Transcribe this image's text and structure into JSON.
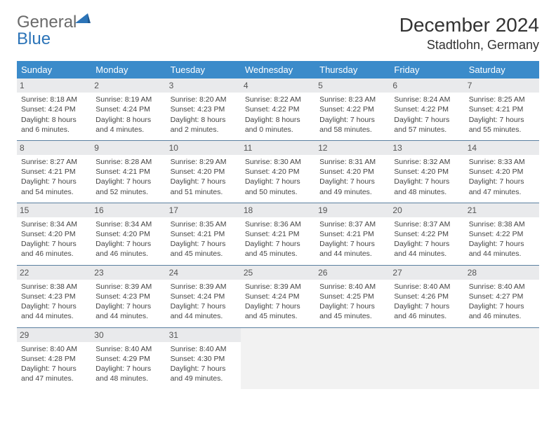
{
  "brand": {
    "part1": "General",
    "part2": "Blue"
  },
  "title": "December 2024",
  "location": "Stadtlohn, Germany",
  "colors": {
    "header_bg": "#3b8bca",
    "header_text": "#ffffff",
    "daynum_bg": "#e9eaec",
    "row_divider": "#5a7fa0",
    "brand_gray": "#6a6a6a",
    "brand_blue": "#2c74b8",
    "empty_bg": "#f2f2f2"
  },
  "columns": [
    "Sunday",
    "Monday",
    "Tuesday",
    "Wednesday",
    "Thursday",
    "Friday",
    "Saturday"
  ],
  "weeks": [
    [
      {
        "n": "1",
        "sr": "Sunrise: 8:18 AM",
        "ss": "Sunset: 4:24 PM",
        "dl": "Daylight: 8 hours and 6 minutes."
      },
      {
        "n": "2",
        "sr": "Sunrise: 8:19 AM",
        "ss": "Sunset: 4:24 PM",
        "dl": "Daylight: 8 hours and 4 minutes."
      },
      {
        "n": "3",
        "sr": "Sunrise: 8:20 AM",
        "ss": "Sunset: 4:23 PM",
        "dl": "Daylight: 8 hours and 2 minutes."
      },
      {
        "n": "4",
        "sr": "Sunrise: 8:22 AM",
        "ss": "Sunset: 4:22 PM",
        "dl": "Daylight: 8 hours and 0 minutes."
      },
      {
        "n": "5",
        "sr": "Sunrise: 8:23 AM",
        "ss": "Sunset: 4:22 PM",
        "dl": "Daylight: 7 hours and 58 minutes."
      },
      {
        "n": "6",
        "sr": "Sunrise: 8:24 AM",
        "ss": "Sunset: 4:22 PM",
        "dl": "Daylight: 7 hours and 57 minutes."
      },
      {
        "n": "7",
        "sr": "Sunrise: 8:25 AM",
        "ss": "Sunset: 4:21 PM",
        "dl": "Daylight: 7 hours and 55 minutes."
      }
    ],
    [
      {
        "n": "8",
        "sr": "Sunrise: 8:27 AM",
        "ss": "Sunset: 4:21 PM",
        "dl": "Daylight: 7 hours and 54 minutes."
      },
      {
        "n": "9",
        "sr": "Sunrise: 8:28 AM",
        "ss": "Sunset: 4:21 PM",
        "dl": "Daylight: 7 hours and 52 minutes."
      },
      {
        "n": "10",
        "sr": "Sunrise: 8:29 AM",
        "ss": "Sunset: 4:20 PM",
        "dl": "Daylight: 7 hours and 51 minutes."
      },
      {
        "n": "11",
        "sr": "Sunrise: 8:30 AM",
        "ss": "Sunset: 4:20 PM",
        "dl": "Daylight: 7 hours and 50 minutes."
      },
      {
        "n": "12",
        "sr": "Sunrise: 8:31 AM",
        "ss": "Sunset: 4:20 PM",
        "dl": "Daylight: 7 hours and 49 minutes."
      },
      {
        "n": "13",
        "sr": "Sunrise: 8:32 AM",
        "ss": "Sunset: 4:20 PM",
        "dl": "Daylight: 7 hours and 48 minutes."
      },
      {
        "n": "14",
        "sr": "Sunrise: 8:33 AM",
        "ss": "Sunset: 4:20 PM",
        "dl": "Daylight: 7 hours and 47 minutes."
      }
    ],
    [
      {
        "n": "15",
        "sr": "Sunrise: 8:34 AM",
        "ss": "Sunset: 4:20 PM",
        "dl": "Daylight: 7 hours and 46 minutes."
      },
      {
        "n": "16",
        "sr": "Sunrise: 8:34 AM",
        "ss": "Sunset: 4:20 PM",
        "dl": "Daylight: 7 hours and 46 minutes."
      },
      {
        "n": "17",
        "sr": "Sunrise: 8:35 AM",
        "ss": "Sunset: 4:21 PM",
        "dl": "Daylight: 7 hours and 45 minutes."
      },
      {
        "n": "18",
        "sr": "Sunrise: 8:36 AM",
        "ss": "Sunset: 4:21 PM",
        "dl": "Daylight: 7 hours and 45 minutes."
      },
      {
        "n": "19",
        "sr": "Sunrise: 8:37 AM",
        "ss": "Sunset: 4:21 PM",
        "dl": "Daylight: 7 hours and 44 minutes."
      },
      {
        "n": "20",
        "sr": "Sunrise: 8:37 AM",
        "ss": "Sunset: 4:22 PM",
        "dl": "Daylight: 7 hours and 44 minutes."
      },
      {
        "n": "21",
        "sr": "Sunrise: 8:38 AM",
        "ss": "Sunset: 4:22 PM",
        "dl": "Daylight: 7 hours and 44 minutes."
      }
    ],
    [
      {
        "n": "22",
        "sr": "Sunrise: 8:38 AM",
        "ss": "Sunset: 4:23 PM",
        "dl": "Daylight: 7 hours and 44 minutes."
      },
      {
        "n": "23",
        "sr": "Sunrise: 8:39 AM",
        "ss": "Sunset: 4:23 PM",
        "dl": "Daylight: 7 hours and 44 minutes."
      },
      {
        "n": "24",
        "sr": "Sunrise: 8:39 AM",
        "ss": "Sunset: 4:24 PM",
        "dl": "Daylight: 7 hours and 44 minutes."
      },
      {
        "n": "25",
        "sr": "Sunrise: 8:39 AM",
        "ss": "Sunset: 4:24 PM",
        "dl": "Daylight: 7 hours and 45 minutes."
      },
      {
        "n": "26",
        "sr": "Sunrise: 8:40 AM",
        "ss": "Sunset: 4:25 PM",
        "dl": "Daylight: 7 hours and 45 minutes."
      },
      {
        "n": "27",
        "sr": "Sunrise: 8:40 AM",
        "ss": "Sunset: 4:26 PM",
        "dl": "Daylight: 7 hours and 46 minutes."
      },
      {
        "n": "28",
        "sr": "Sunrise: 8:40 AM",
        "ss": "Sunset: 4:27 PM",
        "dl": "Daylight: 7 hours and 46 minutes."
      }
    ],
    [
      {
        "n": "29",
        "sr": "Sunrise: 8:40 AM",
        "ss": "Sunset: 4:28 PM",
        "dl": "Daylight: 7 hours and 47 minutes."
      },
      {
        "n": "30",
        "sr": "Sunrise: 8:40 AM",
        "ss": "Sunset: 4:29 PM",
        "dl": "Daylight: 7 hours and 48 minutes."
      },
      {
        "n": "31",
        "sr": "Sunrise: 8:40 AM",
        "ss": "Sunset: 4:30 PM",
        "dl": "Daylight: 7 hours and 49 minutes."
      },
      {
        "empty": true
      },
      {
        "empty": true
      },
      {
        "empty": true
      },
      {
        "empty": true
      }
    ]
  ]
}
